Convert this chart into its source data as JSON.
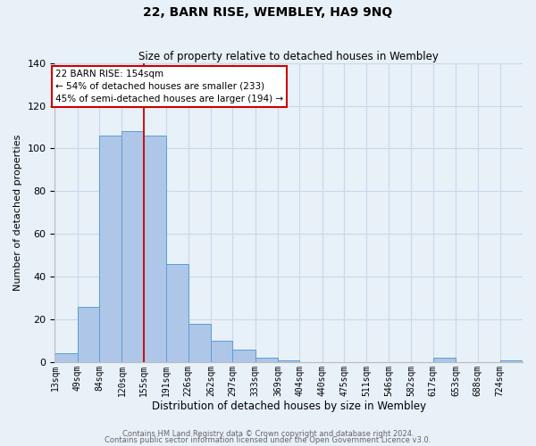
{
  "title": "22, BARN RISE, WEMBLEY, HA9 9NQ",
  "subtitle": "Size of property relative to detached houses in Wembley",
  "xlabel": "Distribution of detached houses by size in Wembley",
  "ylabel": "Number of detached properties",
  "bin_labels": [
    "13sqm",
    "49sqm",
    "84sqm",
    "120sqm",
    "155sqm",
    "191sqm",
    "226sqm",
    "262sqm",
    "297sqm",
    "333sqm",
    "369sqm",
    "404sqm",
    "440sqm",
    "475sqm",
    "511sqm",
    "546sqm",
    "582sqm",
    "617sqm",
    "653sqm",
    "688sqm",
    "724sqm"
  ],
  "bar_heights": [
    4,
    26,
    106,
    108,
    106,
    46,
    18,
    10,
    6,
    2,
    1,
    0,
    0,
    0,
    0,
    0,
    0,
    2,
    0,
    0,
    1
  ],
  "bar_color": "#aec6e8",
  "bar_edge_color": "#5a9fd4",
  "property_line_x": 155,
  "bin_edges": [
    13,
    49,
    84,
    120,
    155,
    191,
    226,
    262,
    297,
    333,
    369,
    404,
    440,
    475,
    511,
    546,
    582,
    617,
    653,
    688,
    724,
    760
  ],
  "ylim": [
    0,
    140
  ],
  "yticks": [
    0,
    20,
    40,
    60,
    80,
    100,
    120,
    140
  ],
  "annotation_title": "22 BARN RISE: 154sqm",
  "annotation_line1": "← 54% of detached houses are smaller (233)",
  "annotation_line2": "45% of semi-detached houses are larger (194) →",
  "annotation_box_color": "#ffffff",
  "annotation_box_edge_color": "#cc0000",
  "property_vline_color": "#cc0000",
  "footnote1": "Contains HM Land Registry data © Crown copyright and database right 2024.",
  "footnote2": "Contains public sector information licensed under the Open Government Licence v3.0.",
  "grid_color": "#c8d8ea",
  "background_color": "#e8f0f8"
}
